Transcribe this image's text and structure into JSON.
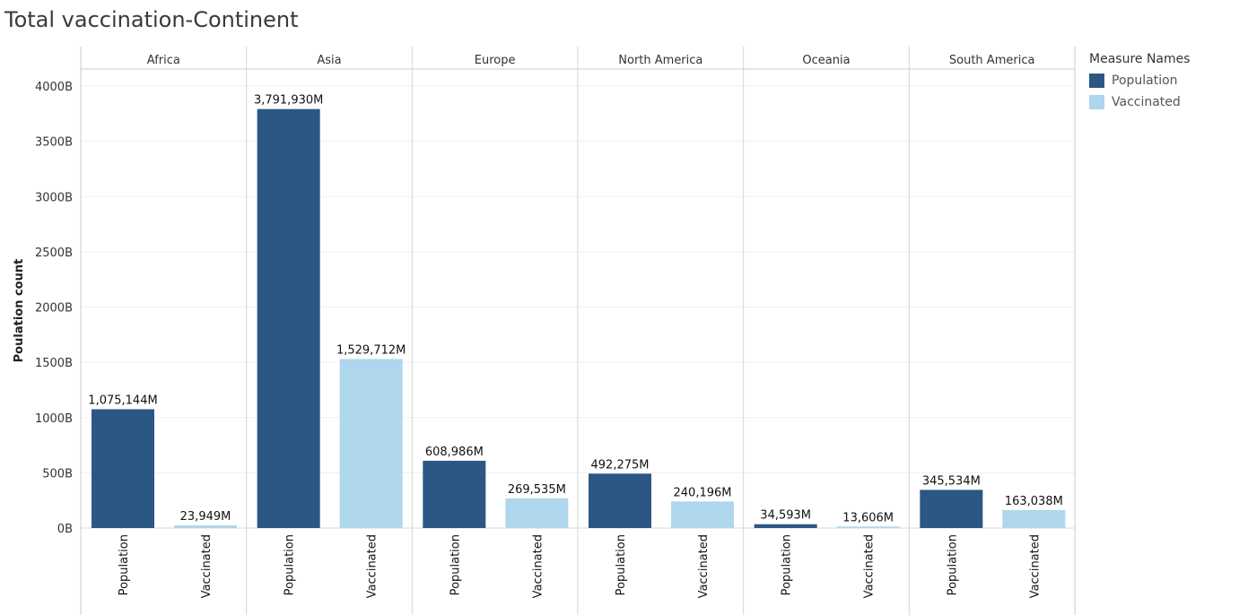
{
  "title": "Total vaccination-Continent",
  "chart_data": {
    "type": "bar",
    "ylabel": "Poulation count",
    "ylim": [
      0,
      4000
    ],
    "yticks": [
      "0B",
      "500B",
      "1000B",
      "1500B",
      "2000B",
      "2500B",
      "3000B",
      "3500B",
      "4000B"
    ],
    "ytick_values": [
      0,
      500,
      1000,
      1500,
      2000,
      2500,
      3000,
      3500,
      4000
    ],
    "measures": [
      "Population",
      "Vaccinated"
    ],
    "colors": {
      "Population": "#2c5784",
      "Vaccinated": "#afd6ec"
    },
    "categories": [
      "Africa",
      "Asia",
      "Europe",
      "North America",
      "Oceania",
      "South America"
    ],
    "series": [
      {
        "name": "Population",
        "values": [
          1075.144,
          3791.93,
          608.986,
          492.275,
          34.593,
          345.534
        ],
        "labels": [
          "1,075,144M",
          "3,791,930M",
          "608,986M",
          "492,275M",
          "34,593M",
          "345,534M"
        ]
      },
      {
        "name": "Vaccinated",
        "values": [
          23.949,
          1529.712,
          269.535,
          240.196,
          13.606,
          163.038
        ],
        "labels": [
          "23,949M",
          "1,529,712M",
          "269,535M",
          "240,196M",
          "13,606M",
          "163,038M"
        ]
      }
    ],
    "grid": true,
    "legend_position": "right"
  },
  "legend": {
    "title": "Measure Names",
    "items": [
      {
        "label": "Population",
        "color": "#2c5784"
      },
      {
        "label": "Vaccinated",
        "color": "#afd6ec"
      }
    ]
  }
}
